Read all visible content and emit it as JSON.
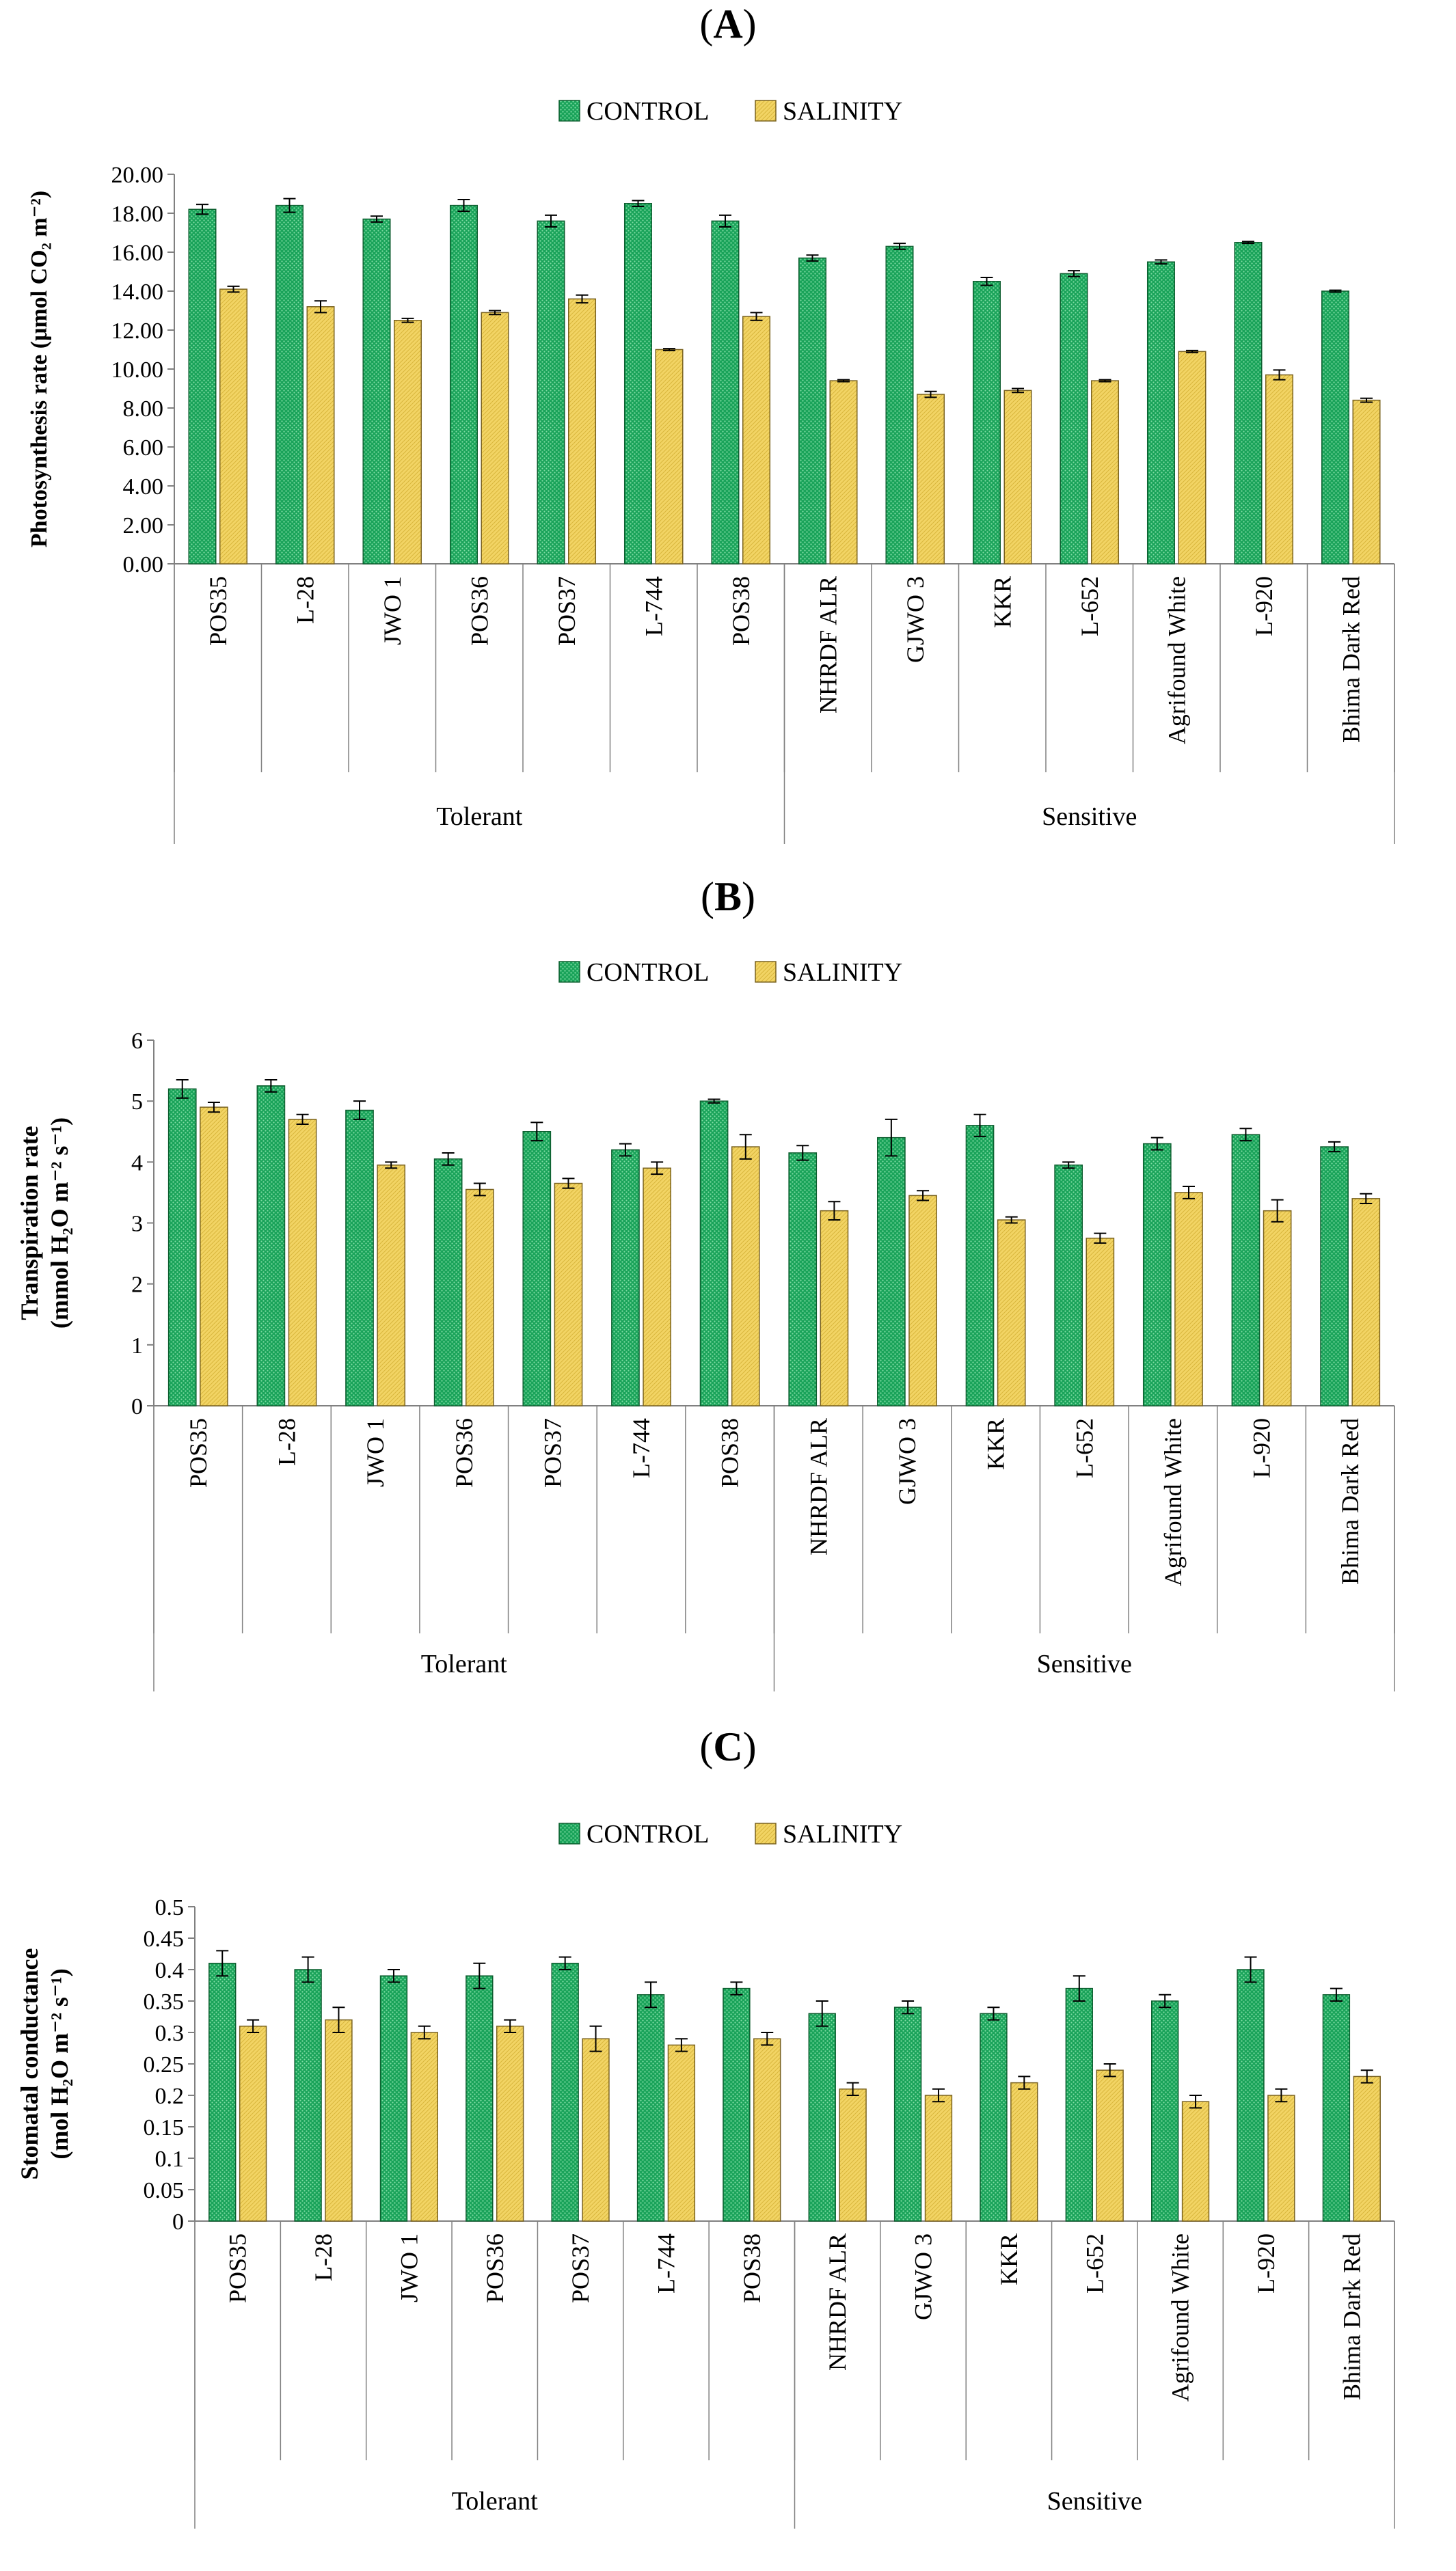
{
  "colors": {
    "control": "#1aa35a",
    "control_stroke": "#0d5e2f",
    "salinity": "#f2d464",
    "salinity_stroke": "#7a6320",
    "axis": "#808080",
    "text": "#000000"
  },
  "chart_data": [
    {
      "panel_label": "(A)",
      "type": "bar",
      "title": "",
      "ylabel": "Photosynthesis rate (μmol CO₂ m⁻²)",
      "ylim": [
        0,
        20
      ],
      "yticks": [
        "0.00",
        "2.00",
        "4.00",
        "6.00",
        "8.00",
        "10.00",
        "12.00",
        "14.00",
        "16.00",
        "18.00",
        "20.00"
      ],
      "categories": [
        "POS35",
        "L-28",
        "JWO 1",
        "POS36",
        "POS37",
        "L-744",
        "POS38",
        "NHRDF ALR",
        "GJWO 3",
        "KKR",
        "L-652",
        "Agrifound White",
        "L-920",
        "Bhima Dark Red"
      ],
      "groups": [
        {
          "label": "Tolerant",
          "count": 7
        },
        {
          "label": "Sensitive",
          "count": 7
        }
      ],
      "series": [
        {
          "name": "CONTROL",
          "values": [
            18.2,
            18.4,
            17.7,
            18.4,
            17.6,
            18.5,
            17.6,
            15.7,
            16.3,
            14.5,
            14.9,
            15.5,
            16.5,
            14.0
          ],
          "errors": [
            0.25,
            0.35,
            0.15,
            0.3,
            0.3,
            0.15,
            0.3,
            0.15,
            0.15,
            0.2,
            0.15,
            0.1,
            0.05,
            0.05
          ]
        },
        {
          "name": "SALINITY",
          "values": [
            14.1,
            13.2,
            12.5,
            12.9,
            13.6,
            11.0,
            12.7,
            9.4,
            8.7,
            8.9,
            9.4,
            10.9,
            9.7,
            8.4
          ],
          "errors": [
            0.15,
            0.3,
            0.1,
            0.1,
            0.2,
            0.05,
            0.2,
            0.05,
            0.15,
            0.1,
            0.05,
            0.05,
            0.25,
            0.1
          ]
        }
      ]
    },
    {
      "panel_label": "(B)",
      "type": "bar",
      "title": "",
      "ylabel": "Transpiration rate",
      "ylabel2": "(mmol H₂O m⁻² s⁻¹)",
      "ylim": [
        0,
        6
      ],
      "yticks": [
        "0",
        "1",
        "2",
        "3",
        "4",
        "5",
        "6"
      ],
      "categories": [
        "POS35",
        "L-28",
        "JWO 1",
        "POS36",
        "POS37",
        "L-744",
        "POS38",
        "NHRDF ALR",
        "GJWO 3",
        "KKR",
        "L-652",
        "Agrifound White",
        "L-920",
        "Bhima Dark Red"
      ],
      "groups": [
        {
          "label": "Tolerant",
          "count": 7
        },
        {
          "label": "Sensitive",
          "count": 7
        }
      ],
      "series": [
        {
          "name": "CONTROL",
          "values": [
            5.2,
            5.25,
            4.85,
            4.05,
            4.5,
            4.2,
            5.0,
            4.15,
            4.4,
            4.6,
            3.95,
            4.3,
            4.45,
            4.25
          ],
          "errors": [
            0.15,
            0.1,
            0.15,
            0.1,
            0.15,
            0.1,
            0.03,
            0.12,
            0.3,
            0.18,
            0.05,
            0.1,
            0.1,
            0.08
          ]
        },
        {
          "name": "SALINITY",
          "values": [
            4.9,
            4.7,
            3.95,
            3.55,
            3.65,
            3.9,
            4.25,
            3.2,
            3.45,
            3.05,
            2.75,
            3.5,
            3.2,
            3.4
          ],
          "errors": [
            0.08,
            0.08,
            0.05,
            0.1,
            0.08,
            0.1,
            0.2,
            0.15,
            0.08,
            0.05,
            0.08,
            0.1,
            0.18,
            0.08
          ]
        }
      ]
    },
    {
      "panel_label": "(C)",
      "type": "bar",
      "title": "",
      "ylabel": "Stomatal conductance",
      "ylabel2": "(mol H₂O m⁻² s⁻¹)",
      "ylim": [
        0,
        0.5
      ],
      "yticks": [
        "0",
        "0.05",
        "0.1",
        "0.15",
        "0.2",
        "0.25",
        "0.3",
        "0.35",
        "0.4",
        "0.45",
        "0.5"
      ],
      "categories": [
        "POS35",
        "L-28",
        "JWO 1",
        "POS36",
        "POS37",
        "L-744",
        "POS38",
        "NHRDF ALR",
        "GJWO 3",
        "KKR",
        "L-652",
        "Agrifound White",
        "L-920",
        "Bhima Dark Red"
      ],
      "groups": [
        {
          "label": "Tolerant",
          "count": 7
        },
        {
          "label": "Sensitive",
          "count": 7
        }
      ],
      "series": [
        {
          "name": "CONTROL",
          "values": [
            0.41,
            0.4,
            0.39,
            0.39,
            0.41,
            0.36,
            0.37,
            0.33,
            0.34,
            0.33,
            0.37,
            0.35,
            0.4,
            0.36
          ],
          "errors": [
            0.02,
            0.02,
            0.01,
            0.02,
            0.01,
            0.02,
            0.01,
            0.02,
            0.01,
            0.01,
            0.02,
            0.01,
            0.02,
            0.01
          ]
        },
        {
          "name": "SALINITY",
          "values": [
            0.31,
            0.32,
            0.3,
            0.31,
            0.29,
            0.28,
            0.29,
            0.21,
            0.2,
            0.22,
            0.24,
            0.19,
            0.2,
            0.23
          ],
          "errors": [
            0.01,
            0.02,
            0.01,
            0.01,
            0.02,
            0.01,
            0.01,
            0.01,
            0.01,
            0.01,
            0.01,
            0.01,
            0.01,
            0.01
          ]
        }
      ]
    }
  ]
}
